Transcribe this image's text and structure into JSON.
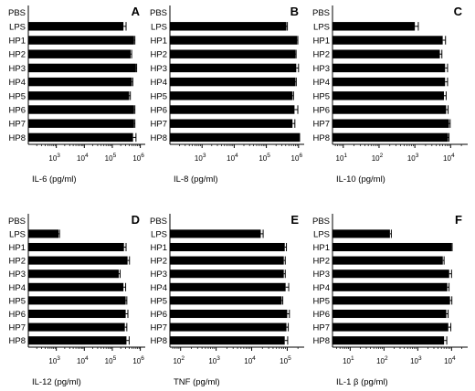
{
  "chart_data": [
    {
      "type": "bar",
      "orientation": "horizontal",
      "panel": "A",
      "xlabel": "IL-6 (pg/ml)",
      "xscale": "log",
      "xlim": [
        100,
        1500000
      ],
      "xticks": [
        {
          "value": 1000,
          "base": "10",
          "exp": "3"
        },
        {
          "value": 10000,
          "base": "10",
          "exp": "4"
        },
        {
          "value": 100000,
          "base": "10",
          "exp": "5"
        },
        {
          "value": 1000000,
          "base": "10",
          "exp": "6"
        }
      ],
      "categories": [
        "PBS",
        "LPS",
        "HP1",
        "HP2",
        "HP3",
        "HP4",
        "HP5",
        "HP6",
        "HP7",
        "HP8"
      ],
      "values": [
        null,
        250000,
        600000,
        450000,
        700000,
        500000,
        400000,
        600000,
        600000,
        550000
      ],
      "errors": [
        null,
        60000,
        40000,
        40000,
        40000,
        40000,
        40000,
        40000,
        40000,
        150000
      ]
    },
    {
      "type": "bar",
      "orientation": "horizontal",
      "panel": "B",
      "xlabel": "IL-8 (pg/ml)",
      "xscale": "log",
      "xlim": [
        100,
        1500000
      ],
      "xticks": [
        {
          "value": 1000,
          "base": "10",
          "exp": "3"
        },
        {
          "value": 10000,
          "base": "10",
          "exp": "4"
        },
        {
          "value": 100000,
          "base": "10",
          "exp": "5"
        },
        {
          "value": 1000000,
          "base": "10",
          "exp": "6"
        }
      ],
      "categories": [
        "PBS",
        "LPS",
        "HP1",
        "HP2",
        "HP3",
        "HP4",
        "HP5",
        "HP6",
        "HP7",
        "HP8"
      ],
      "values": [
        null,
        420000,
        900000,
        800000,
        850000,
        800000,
        650000,
        750000,
        650000,
        1050000
      ],
      "errors": [
        null,
        30000,
        50000,
        40000,
        150000,
        50000,
        50000,
        200000,
        120000,
        30000
      ]
    },
    {
      "type": "bar",
      "orientation": "horizontal",
      "panel": "C",
      "xlabel": "IL-10 (pg/ml)",
      "xscale": "log",
      "xlim": [
        5,
        30000
      ],
      "xticks": [
        {
          "value": 10,
          "base": "10",
          "exp": "1"
        },
        {
          "value": 100,
          "base": "10",
          "exp": "2"
        },
        {
          "value": 1000,
          "base": "10",
          "exp": "3"
        },
        {
          "value": 10000,
          "base": "10",
          "exp": "4"
        }
      ],
      "categories": [
        "PBS",
        "LPS",
        "HP1",
        "HP2",
        "HP3",
        "HP4",
        "HP5",
        "HP6",
        "HP7",
        "HP8"
      ],
      "values": [
        null,
        1000,
        6000,
        5000,
        7000,
        7000,
        6500,
        7500,
        9000,
        8500
      ],
      "errors": [
        null,
        250,
        1200,
        700,
        1200,
        1200,
        1000,
        1000,
        700,
        500
      ]
    },
    {
      "type": "bar",
      "orientation": "horizontal",
      "panel": "D",
      "xlabel": "IL-12 (pg/ml)",
      "xscale": "log",
      "xlim": [
        100,
        1500000
      ],
      "xticks": [
        {
          "value": 1000,
          "base": "10",
          "exp": "3"
        },
        {
          "value": 10000,
          "base": "10",
          "exp": "4"
        },
        {
          "value": 100000,
          "base": "10",
          "exp": "5"
        },
        {
          "value": 1000000,
          "base": "10",
          "exp": "6"
        }
      ],
      "categories": [
        "PBS",
        "LPS",
        "HP1",
        "HP2",
        "HP3",
        "HP4",
        "HP5",
        "HP6",
        "HP7",
        "HP8"
      ],
      "values": [
        null,
        1200,
        260000,
        350000,
        170000,
        250000,
        300000,
        300000,
        280000,
        320000
      ],
      "errors": [
        null,
        100,
        50000,
        60000,
        20000,
        50000,
        30000,
        60000,
        50000,
        80000
      ]
    },
    {
      "type": "bar",
      "orientation": "horizontal",
      "panel": "E",
      "xlabel": "TNF (pg/ml)",
      "xscale": "log",
      "xlim": [
        50,
        300000
      ],
      "xticks": [
        {
          "value": 100,
          "base": "10",
          "exp": "2"
        },
        {
          "value": 1000,
          "base": "10",
          "exp": "3"
        },
        {
          "value": 10000,
          "base": "10",
          "exp": "4"
        },
        {
          "value": 100000,
          "base": "10",
          "exp": "5"
        }
      ],
      "categories": [
        "PBS",
        "LPS",
        "HP1",
        "HP2",
        "HP3",
        "HP4",
        "HP5",
        "HP6",
        "HP7",
        "HP8"
      ],
      "values": [
        null,
        18000,
        85000,
        80000,
        80000,
        90000,
        70000,
        100000,
        95000,
        85000
      ],
      "errors": [
        null,
        3000,
        10000,
        8000,
        8000,
        20000,
        5000,
        15000,
        12000,
        18000
      ]
    },
    {
      "type": "bar",
      "orientation": "horizontal",
      "panel": "F",
      "xlabel": "IL-1 β (pg/ml)",
      "xscale": "log",
      "xlim": [
        3,
        30000
      ],
      "xticks": [
        {
          "value": 10,
          "base": "10",
          "exp": "1"
        },
        {
          "value": 100,
          "base": "10",
          "exp": "2"
        },
        {
          "value": 1000,
          "base": "10",
          "exp": "3"
        },
        {
          "value": 10000,
          "base": "10",
          "exp": "4"
        }
      ],
      "categories": [
        "PBS",
        "LPS",
        "HP1",
        "HP2",
        "HP3",
        "HP4",
        "HP5",
        "HP6",
        "HP7",
        "HP8"
      ],
      "values": [
        null,
        150,
        10000,
        5500,
        8500,
        7500,
        9000,
        7000,
        8000,
        6000
      ],
      "errors": [
        null,
        15,
        400,
        500,
        1500,
        900,
        1200,
        900,
        1500,
        1200
      ]
    }
  ]
}
